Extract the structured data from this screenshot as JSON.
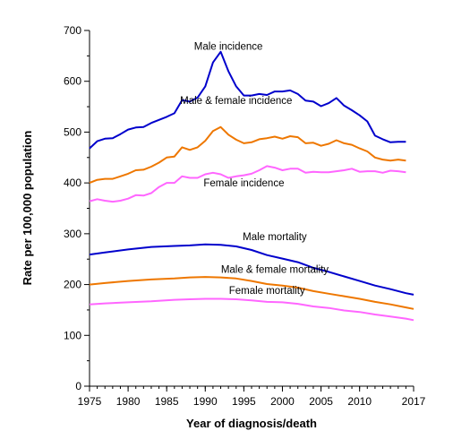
{
  "chart_data": {
    "type": "line",
    "title": "",
    "xlabel": "Year of diagnosis/death",
    "ylabel": "Rate per 100,000 population",
    "xlim": [
      1975,
      2017
    ],
    "ylim": [
      0,
      700
    ],
    "x_ticks": [
      1975,
      1980,
      1985,
      1990,
      1995,
      2000,
      2005,
      2010,
      2017
    ],
    "y_ticks": [
      0,
      100,
      200,
      300,
      400,
      500,
      600,
      700
    ],
    "grid": false,
    "legend": "none",
    "series": [
      {
        "name": "Male incidence",
        "color": "#0000cc",
        "label_at": [
          1993,
          662
        ],
        "points": [
          [
            1975,
            468
          ],
          [
            1976,
            482
          ],
          [
            1977,
            487
          ],
          [
            1978,
            488
          ],
          [
            1979,
            496
          ],
          [
            1980,
            505
          ],
          [
            1981,
            509
          ],
          [
            1982,
            510
          ],
          [
            1983,
            518
          ],
          [
            1984,
            524
          ],
          [
            1985,
            530
          ],
          [
            1986,
            537
          ],
          [
            1987,
            563
          ],
          [
            1988,
            560
          ],
          [
            1989,
            568
          ],
          [
            1990,
            590
          ],
          [
            1991,
            637
          ],
          [
            1992,
            658
          ],
          [
            1993,
            620
          ],
          [
            1994,
            590
          ],
          [
            1995,
            572
          ],
          [
            1996,
            572
          ],
          [
            1997,
            575
          ],
          [
            1998,
            573
          ],
          [
            1999,
            580
          ],
          [
            2000,
            580
          ],
          [
            2001,
            582
          ],
          [
            2002,
            575
          ],
          [
            2003,
            562
          ],
          [
            2004,
            560
          ],
          [
            2005,
            551
          ],
          [
            2006,
            557
          ],
          [
            2007,
            567
          ],
          [
            2008,
            552
          ],
          [
            2009,
            543
          ],
          [
            2010,
            533
          ],
          [
            2011,
            521
          ],
          [
            2012,
            493
          ],
          [
            2013,
            486
          ],
          [
            2014,
            480
          ],
          [
            2015,
            481
          ],
          [
            2016,
            481
          ]
        ]
      },
      {
        "name": "Male & female incidence",
        "color": "#ee7700",
        "label_at": [
          1994,
          555
        ],
        "points": [
          [
            1975,
            400
          ],
          [
            1976,
            406
          ],
          [
            1977,
            408
          ],
          [
            1978,
            408
          ],
          [
            1979,
            413
          ],
          [
            1980,
            418
          ],
          [
            1981,
            425
          ],
          [
            1982,
            426
          ],
          [
            1983,
            432
          ],
          [
            1984,
            440
          ],
          [
            1985,
            450
          ],
          [
            1986,
            452
          ],
          [
            1987,
            470
          ],
          [
            1988,
            465
          ],
          [
            1989,
            470
          ],
          [
            1990,
            483
          ],
          [
            1991,
            502
          ],
          [
            1992,
            510
          ],
          [
            1993,
            495
          ],
          [
            1994,
            485
          ],
          [
            1995,
            478
          ],
          [
            1996,
            480
          ],
          [
            1997,
            486
          ],
          [
            1998,
            488
          ],
          [
            1999,
            491
          ],
          [
            2000,
            487
          ],
          [
            2001,
            492
          ],
          [
            2002,
            490
          ],
          [
            2003,
            478
          ],
          [
            2004,
            479
          ],
          [
            2005,
            473
          ],
          [
            2006,
            477
          ],
          [
            2007,
            484
          ],
          [
            2008,
            478
          ],
          [
            2009,
            475
          ],
          [
            2010,
            468
          ],
          [
            2011,
            462
          ],
          [
            2012,
            450
          ],
          [
            2013,
            446
          ],
          [
            2014,
            444
          ],
          [
            2015,
            446
          ],
          [
            2016,
            444
          ]
        ]
      },
      {
        "name": "Female incidence",
        "color": "#ff66ff",
        "label_at": [
          1995,
          393
        ],
        "points": [
          [
            1975,
            364
          ],
          [
            1976,
            368
          ],
          [
            1977,
            365
          ],
          [
            1978,
            363
          ],
          [
            1979,
            365
          ],
          [
            1980,
            369
          ],
          [
            1981,
            376
          ],
          [
            1982,
            375
          ],
          [
            1983,
            380
          ],
          [
            1984,
            392
          ],
          [
            1985,
            400
          ],
          [
            1986,
            400
          ],
          [
            1987,
            413
          ],
          [
            1988,
            410
          ],
          [
            1989,
            410
          ],
          [
            1990,
            417
          ],
          [
            1991,
            420
          ],
          [
            1992,
            417
          ],
          [
            1993,
            410
          ],
          [
            1994,
            413
          ],
          [
            1995,
            415
          ],
          [
            1996,
            418
          ],
          [
            1997,
            425
          ],
          [
            1998,
            433
          ],
          [
            1999,
            430
          ],
          [
            2000,
            425
          ],
          [
            2001,
            428
          ],
          [
            2002,
            428
          ],
          [
            2003,
            420
          ],
          [
            2004,
            422
          ],
          [
            2005,
            421
          ],
          [
            2006,
            421
          ],
          [
            2007,
            423
          ],
          [
            2008,
            425
          ],
          [
            2009,
            428
          ],
          [
            2010,
            422
          ],
          [
            2011,
            423
          ],
          [
            2012,
            423
          ],
          [
            2013,
            420
          ],
          [
            2014,
            424
          ],
          [
            2015,
            423
          ],
          [
            2016,
            421
          ]
        ]
      },
      {
        "name": "Male mortality",
        "color": "#0000cc",
        "label_at": [
          1999,
          287
        ],
        "points": [
          [
            1975,
            259
          ],
          [
            1977,
            263
          ],
          [
            1980,
            269
          ],
          [
            1983,
            274
          ],
          [
            1986,
            276
          ],
          [
            1988,
            277
          ],
          [
            1990,
            279
          ],
          [
            1992,
            278
          ],
          [
            1994,
            275
          ],
          [
            1996,
            268
          ],
          [
            1998,
            258
          ],
          [
            2000,
            251
          ],
          [
            2002,
            244
          ],
          [
            2004,
            233
          ],
          [
            2006,
            225
          ],
          [
            2008,
            216
          ],
          [
            2010,
            207
          ],
          [
            2012,
            198
          ],
          [
            2014,
            191
          ],
          [
            2016,
            183
          ],
          [
            2017,
            180
          ]
        ]
      },
      {
        "name": "Male & female mortality",
        "color": "#ee7700",
        "label_at": [
          1999,
          223
        ],
        "points": [
          [
            1975,
            200
          ],
          [
            1977,
            203
          ],
          [
            1980,
            207
          ],
          [
            1983,
            210
          ],
          [
            1986,
            212
          ],
          [
            1988,
            214
          ],
          [
            1990,
            215
          ],
          [
            1992,
            214
          ],
          [
            1994,
            212
          ],
          [
            1996,
            207
          ],
          [
            1998,
            201
          ],
          [
            2000,
            198
          ],
          [
            2002,
            194
          ],
          [
            2004,
            187
          ],
          [
            2006,
            182
          ],
          [
            2008,
            177
          ],
          [
            2010,
            172
          ],
          [
            2012,
            166
          ],
          [
            2014,
            161
          ],
          [
            2016,
            155
          ],
          [
            2017,
            152
          ]
        ]
      },
      {
        "name": "Female mortality",
        "color": "#ff66ff",
        "label_at": [
          1998,
          182
        ],
        "points": [
          [
            1975,
            161
          ],
          [
            1977,
            163
          ],
          [
            1980,
            165
          ],
          [
            1983,
            167
          ],
          [
            1986,
            170
          ],
          [
            1988,
            171
          ],
          [
            1990,
            172
          ],
          [
            1992,
            172
          ],
          [
            1994,
            171
          ],
          [
            1996,
            169
          ],
          [
            1998,
            166
          ],
          [
            2000,
            165
          ],
          [
            2002,
            162
          ],
          [
            2004,
            157
          ],
          [
            2006,
            154
          ],
          [
            2008,
            149
          ],
          [
            2010,
            146
          ],
          [
            2012,
            141
          ],
          [
            2014,
            137
          ],
          [
            2016,
            133
          ],
          [
            2017,
            130
          ]
        ]
      }
    ]
  }
}
